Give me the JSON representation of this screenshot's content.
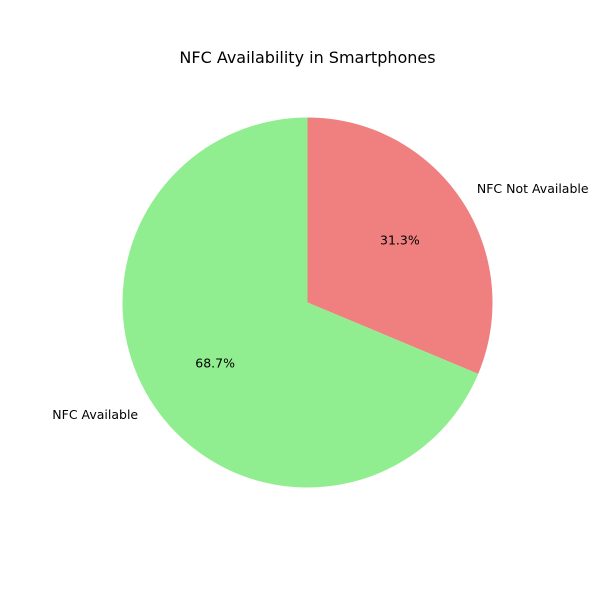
{
  "chart_data": {
    "type": "pie",
    "title": "NFC Availability in Smartphones",
    "slices": [
      {
        "label": "NFC Not Available",
        "value": 31.3,
        "pct_text": "31.3%",
        "color": "#f08080"
      },
      {
        "label": "NFC Available",
        "value": 68.7,
        "pct_text": "68.7%",
        "color": "#90ee90"
      }
    ],
    "start_angle_deg": 90,
    "direction": "clockwise"
  }
}
